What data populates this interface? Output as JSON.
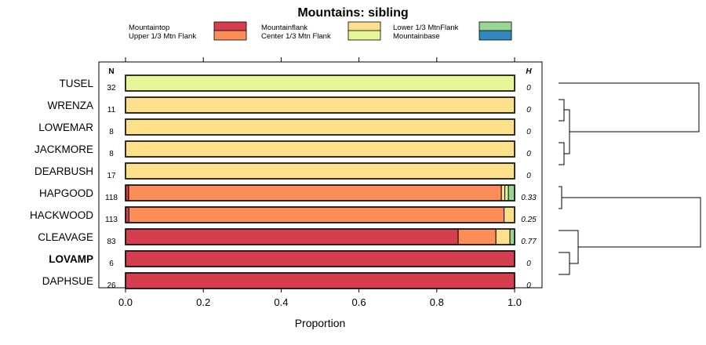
{
  "chart_data": {
    "type": "bar",
    "orientation": "horizontal",
    "stacked": true,
    "title": "Mountains: sibling",
    "xlabel": "Proportion",
    "xlim": [
      0,
      1
    ],
    "xticks": [
      "0.0",
      "0.2",
      "0.4",
      "0.6",
      "0.8",
      "1.0"
    ],
    "xtick_values": [
      0,
      0.2,
      0.4,
      0.6,
      0.8,
      1.0
    ],
    "n_header": "N",
    "h_header": "H",
    "legend": [
      {
        "label": "Mountaintop",
        "color": "#d53e4f"
      },
      {
        "label": "Upper 1/3 Mtn Flank",
        "color": "#fc8d59"
      },
      {
        "label": "Mountainflank",
        "color": "#fee08b"
      },
      {
        "label": "Center 1/3 Mtn Flank",
        "color": "#e6f598"
      },
      {
        "label": "Lower 1/3 MtnFlank",
        "color": "#99d594"
      },
      {
        "label": "Mountainbase",
        "color": "#3288bd"
      }
    ],
    "categories": [
      "TUSEL",
      "WRENZA",
      "LOWEMAR",
      "JACKMORE",
      "DEARBUSH",
      "HAPGOOD",
      "HACKWOOD",
      "CLEAVAGE",
      "LOVAMP",
      "DAPHSUE"
    ],
    "bold_category": "LOVAMP",
    "n": [
      "32",
      "11",
      "8",
      "8",
      "17",
      "118",
      "113",
      "83",
      "6",
      "26"
    ],
    "h": [
      "0",
      "0",
      "0",
      "0",
      "0",
      "0.33",
      "0.25",
      "0.77",
      "0",
      "0"
    ],
    "series": [
      {
        "name": "Mountaintop",
        "values": [
          0,
          0,
          0,
          0,
          0,
          0.008,
          0.009,
          0.855,
          1,
          1
        ]
      },
      {
        "name": "Upper 1/3 Mtn Flank",
        "values": [
          0,
          0,
          0,
          0,
          0,
          0.958,
          0.964,
          0.097,
          0,
          0
        ]
      },
      {
        "name": "Mountainflank",
        "values": [
          0,
          1,
          1,
          1,
          1,
          0.009,
          0.027,
          0.036,
          0,
          0
        ]
      },
      {
        "name": "Center 1/3 Mtn Flank",
        "values": [
          1,
          0,
          0,
          0,
          0,
          0.009,
          0,
          0,
          0,
          0
        ]
      },
      {
        "name": "Lower 1/3 MtnFlank",
        "values": [
          0,
          0,
          0,
          0,
          0,
          0.016,
          0,
          0.012,
          0,
          0
        ]
      },
      {
        "name": "Mountainbase",
        "values": [
          0,
          0,
          0,
          0,
          0,
          0,
          0,
          0,
          0,
          0
        ]
      }
    ],
    "dendrogram": "hierarchical clustering tree of rows"
  }
}
